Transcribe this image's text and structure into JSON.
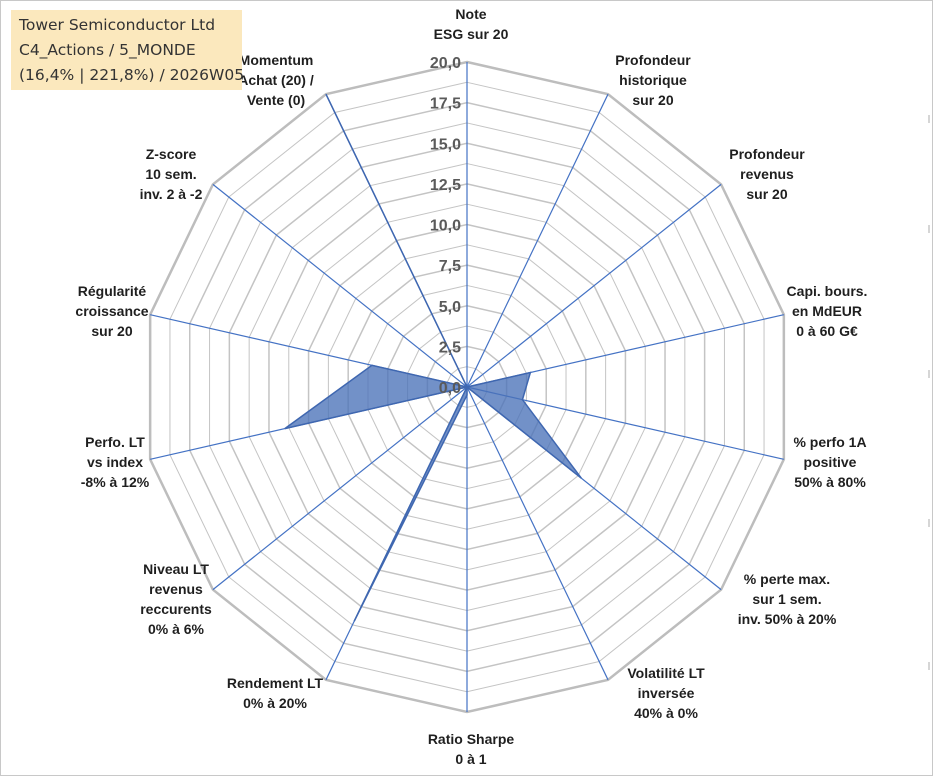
{
  "header": {
    "title": "Tower Semiconductor Ltd",
    "subtitle": "C4_Actions / 5_MONDE",
    "detail": "(16,4% | 221,8%) / 2026W05"
  },
  "chart_data": {
    "type": "radar",
    "title": "Tower Semiconductor Ltd",
    "rlim": [
      0,
      20
    ],
    "ticks": [
      "0,0",
      "2,5",
      "5,0",
      "7,5",
      "10,0",
      "12,5",
      "15,0",
      "17,5",
      "20,0"
    ],
    "tick_values": [
      0,
      2.5,
      5,
      7.5,
      10,
      12.5,
      15,
      17.5,
      20
    ],
    "grid": true,
    "axes": [
      {
        "label": [
          "Note",
          "ESG sur 20"
        ],
        "value": 0
      },
      {
        "label": [
          "Profondeur",
          "historique",
          "sur 20"
        ],
        "value": 0
      },
      {
        "label": [
          "Profondeur",
          "revenus",
          "sur 20"
        ],
        "value": 0
      },
      {
        "label": [
          "Capi. bours.",
          "en MdEUR",
          "0 à 60 G€"
        ],
        "value": 4
      },
      {
        "label": [
          "% perfo 1A",
          "positive",
          "50% à 80%"
        ],
        "value": 3.5
      },
      {
        "label": [
          "% perte max.",
          "sur 1 sem.",
          "inv. 50% à 20%"
        ],
        "value": 9
      },
      {
        "label": [
          "Volatilité LT",
          "inversée",
          "40% à 0%"
        ],
        "value": 0
      },
      {
        "label": [
          "Ratio Sharpe",
          "0 à 1"
        ],
        "value": 0.5
      },
      {
        "label": [
          "Rendement LT",
          "0% à 20%"
        ],
        "value": 16
      },
      {
        "label": [
          "Niveau LT",
          "revenus",
          "reccurents",
          "0% à 6%"
        ],
        "value": 0
      },
      {
        "label": [
          "Perfo. LT",
          "vs index",
          "-8% à 12%"
        ],
        "value": 11.5
      },
      {
        "label": [
          "Régularité",
          "croissance",
          "sur 20"
        ],
        "value": 6
      },
      {
        "label": [
          "Z-score",
          "10 sem.",
          "inv. 2 à -2"
        ],
        "value": 0
      },
      {
        "label": [
          "Momentum",
          "Achat (20) /",
          "Vente (0)"
        ],
        "value": 20
      }
    ],
    "colors": {
      "fill": "#4a72b8",
      "line": "#3f67b0",
      "grid": "#c4c4c4",
      "spoke": "#4472c4"
    }
  }
}
